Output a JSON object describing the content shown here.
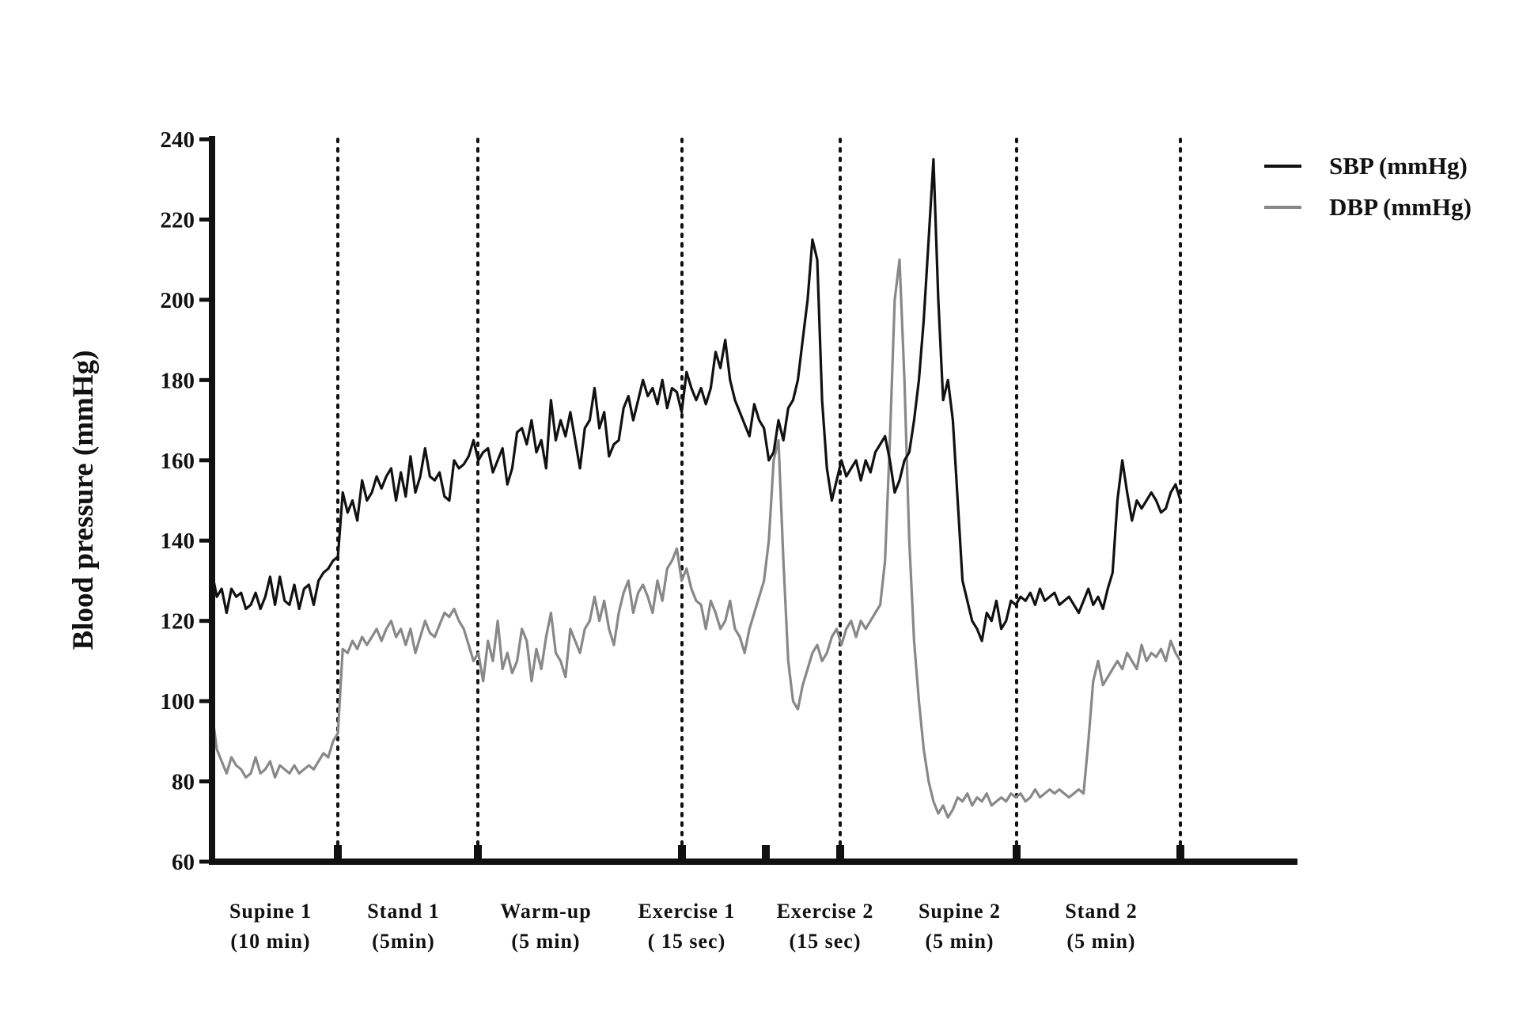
{
  "chart_data": {
    "type": "line",
    "title": "",
    "ylabel": "Blood pressure (mmHg)",
    "xlabel": "",
    "ylim": [
      60,
      240
    ],
    "yticks": [
      60,
      80,
      100,
      120,
      140,
      160,
      180,
      200,
      220,
      240
    ],
    "grid": false,
    "legend_position": "top-right",
    "phases": [
      {
        "line1": "Supine 1",
        "line2": "(10 min)"
      },
      {
        "line1": "Stand 1",
        "line2": "(5min)"
      },
      {
        "line1": "Warm-up",
        "line2": "(5 min)"
      },
      {
        "line1": "Exercise 1",
        "line2": "( 15 sec)"
      },
      {
        "line1": "Exercise 2",
        "line2": "(15 sec)"
      },
      {
        "line1": "Supine 2",
        "line2": "(5 min)"
      },
      {
        "line1": "Stand 2",
        "line2": "(5 min)"
      }
    ],
    "series": [
      {
        "name": "SBP (mmHg)",
        "color": "#111111",
        "x": [
          0,
          1,
          2,
          3,
          4,
          5,
          6,
          7,
          8,
          9,
          10,
          11,
          12,
          13,
          14,
          15,
          16,
          17,
          18,
          19,
          20,
          21,
          22,
          23,
          24,
          25,
          26,
          27,
          28,
          29,
          30,
          31,
          32,
          33,
          34,
          35,
          36,
          37,
          38,
          39,
          40,
          41,
          42,
          43,
          44,
          45,
          46,
          47,
          48,
          49,
          50,
          51,
          52,
          53,
          54,
          55,
          56,
          57,
          58,
          59,
          60,
          61,
          62,
          63,
          64,
          65,
          66,
          67,
          68,
          69,
          70,
          71,
          72,
          73,
          74,
          75,
          76,
          77,
          78,
          79,
          80,
          81,
          82,
          83,
          84,
          85,
          86,
          87,
          88,
          89,
          90,
          91,
          92,
          93,
          94,
          95,
          96,
          97,
          98,
          99,
          100,
          101,
          102,
          103,
          104,
          105,
          106,
          107,
          108,
          109,
          110,
          111,
          112,
          113,
          114,
          115,
          116,
          117,
          118,
          119,
          120,
          121,
          122,
          123,
          124,
          125,
          126,
          127,
          128,
          129,
          130,
          131,
          132,
          133,
          134,
          135,
          136,
          137,
          138,
          139,
          140,
          141,
          142,
          143,
          144,
          145,
          146,
          147,
          148,
          149,
          150,
          151,
          152,
          153,
          154,
          155,
          156,
          157,
          158,
          159,
          160,
          161,
          162,
          163,
          164,
          165,
          166,
          167,
          168,
          169,
          170,
          171,
          172,
          173,
          174,
          175,
          176,
          177,
          178,
          179,
          180,
          181,
          182,
          183,
          184,
          185,
          186,
          187,
          188,
          189,
          190,
          191,
          192,
          193,
          194,
          195,
          196,
          197,
          198,
          199,
          200
        ],
        "y": [
          132,
          126,
          128,
          122,
          128,
          126,
          127,
          123,
          124,
          127,
          123,
          126,
          131,
          124,
          131,
          125,
          124,
          129,
          123,
          128,
          129,
          124,
          130,
          132,
          133,
          135,
          136,
          152,
          147,
          150,
          145,
          155,
          150,
          152,
          156,
          153,
          156,
          158,
          150,
          157,
          151,
          161,
          152,
          156,
          163,
          156,
          155,
          157,
          151,
          150,
          160,
          158,
          159,
          161,
          165,
          160,
          162,
          163,
          157,
          160,
          163,
          154,
          158,
          167,
          168,
          164,
          170,
          162,
          165,
          158,
          175,
          165,
          170,
          166,
          172,
          165,
          158,
          168,
          170,
          178,
          168,
          172,
          161,
          164,
          165,
          173,
          176,
          170,
          175,
          180,
          176,
          178,
          174,
          180,
          173,
          178,
          177,
          172,
          182,
          178,
          175,
          178,
          174,
          178,
          187,
          183,
          190,
          180,
          175,
          172,
          169,
          166,
          174,
          170,
          168,
          160,
          162,
          170,
          165,
          173,
          175,
          180,
          190,
          200,
          215,
          210,
          175,
          158,
          150,
          155,
          160,
          156,
          158,
          160,
          155,
          160,
          157,
          162,
          164,
          166,
          160,
          152,
          155,
          160,
          162,
          170,
          180,
          195,
          215,
          235,
          200,
          175,
          180,
          170,
          150,
          130,
          125,
          120,
          118,
          115,
          122,
          120,
          125,
          118,
          120,
          125,
          124,
          126,
          125,
          127,
          124,
          128,
          125,
          126,
          127,
          124,
          125,
          126,
          124,
          122,
          125,
          128,
          124,
          126,
          123,
          128,
          132,
          150,
          160,
          152,
          145,
          150,
          148,
          150,
          152,
          150,
          147,
          148,
          152,
          154,
          150
        ]
      },
      {
        "name": "DBP (mmHg)",
        "color": "#888888",
        "x": [
          0,
          1,
          2,
          3,
          4,
          5,
          6,
          7,
          8,
          9,
          10,
          11,
          12,
          13,
          14,
          15,
          16,
          17,
          18,
          19,
          20,
          21,
          22,
          23,
          24,
          25,
          26,
          27,
          28,
          29,
          30,
          31,
          32,
          33,
          34,
          35,
          36,
          37,
          38,
          39,
          40,
          41,
          42,
          43,
          44,
          45,
          46,
          47,
          48,
          49,
          50,
          51,
          52,
          53,
          54,
          55,
          56,
          57,
          58,
          59,
          60,
          61,
          62,
          63,
          64,
          65,
          66,
          67,
          68,
          69,
          70,
          71,
          72,
          73,
          74,
          75,
          76,
          77,
          78,
          79,
          80,
          81,
          82,
          83,
          84,
          85,
          86,
          87,
          88,
          89,
          90,
          91,
          92,
          93,
          94,
          95,
          96,
          97,
          98,
          99,
          100,
          101,
          102,
          103,
          104,
          105,
          106,
          107,
          108,
          109,
          110,
          111,
          112,
          113,
          114,
          115,
          116,
          117,
          118,
          119,
          120,
          121,
          122,
          123,
          124,
          125,
          126,
          127,
          128,
          129,
          130,
          131,
          132,
          133,
          134,
          135,
          136,
          137,
          138,
          139,
          140,
          141,
          142,
          143,
          144,
          145,
          146,
          147,
          148,
          149,
          150,
          151,
          152,
          153,
          154,
          155,
          156,
          157,
          158,
          159,
          160,
          161,
          162,
          163,
          164,
          165,
          166,
          167,
          168,
          169,
          170,
          171,
          172,
          173,
          174,
          175,
          176,
          177,
          178,
          179,
          180,
          181,
          182,
          183,
          184,
          185,
          186,
          187,
          188,
          189,
          190,
          191,
          192,
          193,
          194,
          195,
          196,
          197,
          198,
          199,
          200
        ],
        "y": [
          97,
          88,
          85,
          82,
          86,
          84,
          83,
          81,
          82,
          86,
          82,
          83,
          85,
          81,
          84,
          83,
          82,
          84,
          82,
          83,
          84,
          83,
          85,
          87,
          86,
          90,
          92,
          113,
          112,
          115,
          113,
          116,
          114,
          116,
          118,
          115,
          118,
          120,
          116,
          118,
          114,
          118,
          112,
          116,
          120,
          117,
          116,
          119,
          122,
          121,
          123,
          120,
          118,
          114,
          110,
          112,
          105,
          115,
          110,
          120,
          108,
          112,
          107,
          110,
          118,
          115,
          105,
          113,
          108,
          116,
          122,
          112,
          110,
          106,
          118,
          115,
          112,
          118,
          120,
          126,
          120,
          125,
          118,
          114,
          122,
          127,
          130,
          122,
          127,
          129,
          126,
          122,
          130,
          125,
          133,
          135,
          138,
          130,
          133,
          128,
          125,
          124,
          118,
          125,
          122,
          118,
          120,
          125,
          118,
          116,
          112,
          118,
          122,
          126,
          130,
          140,
          160,
          165,
          135,
          110,
          100,
          98,
          104,
          108,
          112,
          114,
          110,
          112,
          116,
          118,
          114,
          118,
          120,
          116,
          120,
          118,
          120,
          122,
          124,
          135,
          165,
          200,
          210,
          180,
          140,
          115,
          100,
          88,
          80,
          75,
          72,
          74,
          71,
          73,
          76,
          75,
          77,
          74,
          76,
          75,
          77,
          74,
          75,
          76,
          75,
          77,
          76,
          77,
          75,
          76,
          78,
          76,
          77,
          78,
          77,
          78,
          77,
          76,
          77,
          78,
          77,
          90,
          105,
          110,
          104,
          106,
          108,
          110,
          108,
          112,
          110,
          108,
          114,
          110,
          112,
          111,
          113,
          110,
          115,
          112,
          110
        ]
      }
    ]
  }
}
